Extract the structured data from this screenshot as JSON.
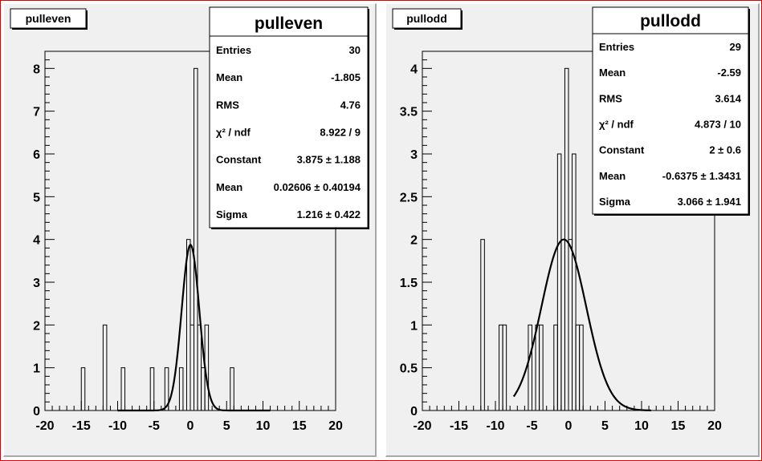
{
  "chart_data": [
    {
      "type": "bar",
      "title": "pulleven",
      "xlim": [
        -20,
        20
      ],
      "ylim": [
        0,
        8.4
      ],
      "xticks": [
        -20,
        -15,
        -10,
        -5,
        0,
        5,
        10,
        15,
        20
      ],
      "xtick_labels": [
        "-20",
        "-15",
        "-10",
        "-5",
        "0",
        "5",
        "10",
        "15",
        "20"
      ],
      "yticks": [
        0,
        1,
        2,
        3,
        4,
        5,
        6,
        7,
        8
      ],
      "ytick_labels": [
        "0",
        "1",
        "2",
        "3",
        "4",
        "5",
        "6",
        "7",
        "8"
      ],
      "bin_width": 0.5,
      "bins": [
        {
          "x": -15.0,
          "y": 1
        },
        {
          "x": -12.0,
          "y": 2
        },
        {
          "x": -9.5,
          "y": 1
        },
        {
          "x": -5.5,
          "y": 1
        },
        {
          "x": -3.5,
          "y": 1
        },
        {
          "x": -1.5,
          "y": 1
        },
        {
          "x": -0.5,
          "y": 4
        },
        {
          "x": 0.0,
          "y": 2
        },
        {
          "x": 0.5,
          "y": 8
        },
        {
          "x": 1.0,
          "y": 2
        },
        {
          "x": 1.5,
          "y": 1
        },
        {
          "x": 2.0,
          "y": 2
        },
        {
          "x": 5.5,
          "y": 1
        }
      ],
      "fit": {
        "constant": 3.875,
        "mean": 0.02606,
        "sigma": 1.216,
        "x_range": [
          -10,
          11
        ]
      },
      "stats": {
        "title": "pulleven",
        "rows": [
          {
            "label": "Entries",
            "value": "30"
          },
          {
            "label": "Mean",
            "value": "-1.805"
          },
          {
            "label": "RMS",
            "value": "4.76"
          },
          {
            "label": "χ² / ndf",
            "value": "8.922 / 9"
          },
          {
            "label": "Constant",
            "value": "3.875 ± 1.188"
          },
          {
            "label": "Mean",
            "value": "0.02606 ± 0.40194"
          },
          {
            "label": "Sigma",
            "value": "1.216 ± 0.422"
          }
        ]
      }
    },
    {
      "type": "bar",
      "title": "pullodd",
      "xlim": [
        -20,
        20
      ],
      "ylim": [
        0,
        4.2
      ],
      "xticks": [
        -20,
        -15,
        -10,
        -5,
        0,
        5,
        10,
        15,
        20
      ],
      "xtick_labels": [
        "-20",
        "-15",
        "-10",
        "-5",
        "0",
        "5",
        "10",
        "15",
        "20"
      ],
      "yticks": [
        0,
        0.5,
        1,
        1.5,
        2,
        2.5,
        3,
        3.5,
        4
      ],
      "ytick_labels": [
        "0",
        "0.5",
        "1",
        "1.5",
        "2",
        "2.5",
        "3",
        "3.5",
        "4"
      ],
      "bin_width": 0.5,
      "bins": [
        {
          "x": -12.0,
          "y": 2
        },
        {
          "x": -9.5,
          "y": 1
        },
        {
          "x": -9.0,
          "y": 1
        },
        {
          "x": -5.5,
          "y": 1
        },
        {
          "x": -4.5,
          "y": 1
        },
        {
          "x": -4.0,
          "y": 1
        },
        {
          "x": -2.0,
          "y": 1
        },
        {
          "x": -1.5,
          "y": 3
        },
        {
          "x": -1.0,
          "y": 2
        },
        {
          "x": -0.5,
          "y": 4
        },
        {
          "x": 0.0,
          "y": 2
        },
        {
          "x": 0.5,
          "y": 3
        },
        {
          "x": 1.0,
          "y": 1
        },
        {
          "x": 1.5,
          "y": 1
        }
      ],
      "fit": {
        "constant": 2.0,
        "mean": -0.6375,
        "sigma": 3.066,
        "x_range": [
          -7.5,
          11.3
        ]
      },
      "stats": {
        "title": "pullodd",
        "rows": [
          {
            "label": "Entries",
            "value": "29"
          },
          {
            "label": "Mean",
            "value": "-2.59"
          },
          {
            "label": "RMS",
            "value": "3.614"
          },
          {
            "label": "χ² / ndf",
            "value": "4.873 / 10"
          },
          {
            "label": "Constant",
            "value": "2 ± 0.6"
          },
          {
            "label": "Mean",
            "value": "-0.6375 ± 1.3431"
          },
          {
            "label": "Sigma",
            "value": "3.066 ± 1.941"
          }
        ]
      }
    }
  ]
}
